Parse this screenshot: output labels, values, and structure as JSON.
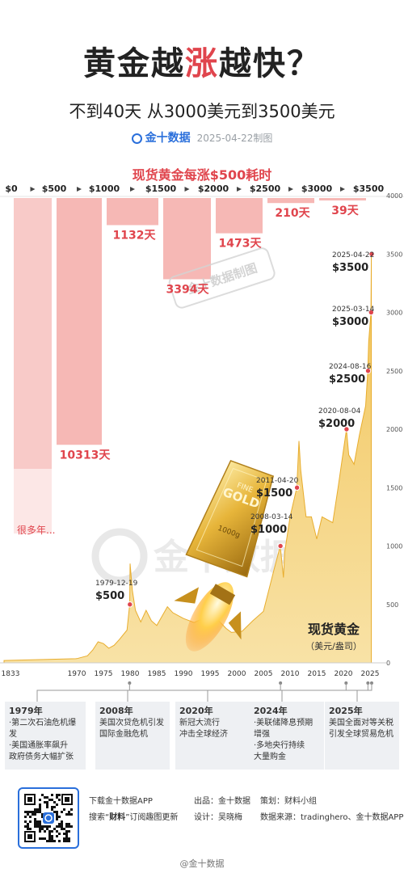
{
  "header": {
    "title_pre": "黄金越",
    "title_accent": "涨",
    "title_post": "越快？",
    "subtitle": "不到40天 从3000美元到3500美元",
    "brand": "金十数据",
    "date_note": "2025-04-22制图"
  },
  "section_title": "现货黄金每涨$500耗时",
  "watermarks": {
    "big": "金十数据",
    "stamp": "金十数据制图"
  },
  "colors": {
    "accent": "#e0454d",
    "bar": "#f6b8b5",
    "area": "#f3c96a",
    "brand": "#2a6fdb"
  },
  "chart_data": [
    {
      "type": "bar",
      "title": "现货黄金每涨$500耗时",
      "categories": [
        "$0",
        "$500",
        "$1000",
        "$1500",
        "$2000",
        "$2500",
        "$3000",
        "$3500"
      ],
      "values_days": [
        null,
        10313,
        1132,
        3394,
        1473,
        210,
        39
      ],
      "labels": [
        "很多年...",
        "10313天",
        "1132天",
        "3394天",
        "1473天",
        "210天",
        "39天"
      ]
    },
    {
      "type": "area",
      "series_label": "现货黄金",
      "unit": "（美元/盎司）",
      "x_ticks": [
        "1833",
        "1970",
        "1975",
        "1980",
        "1985",
        "1990",
        "1995",
        "2000",
        "2005",
        "2010",
        "2015",
        "2020",
        "2025"
      ],
      "y_ticks": [
        "0",
        "500",
        "1000",
        "1500",
        "2000",
        "2500",
        "3000",
        "3500",
        "4000"
      ],
      "ylim": [
        0,
        4000
      ],
      "points": [
        [
          "1833",
          20
        ],
        [
          "1968",
          35
        ],
        [
          "1970",
          36
        ],
        [
          "1972",
          60
        ],
        [
          "1973",
          110
        ],
        [
          "1974",
          180
        ],
        [
          "1975",
          165
        ],
        [
          "1976",
          125
        ],
        [
          "1977",
          150
        ],
        [
          "1978",
          200
        ],
        [
          "1979-06",
          280
        ],
        [
          "1979-12",
          500
        ],
        [
          "1980-01",
          850
        ],
        [
          "1980-06",
          620
        ],
        [
          "1981",
          450
        ],
        [
          "1982",
          350
        ],
        [
          "1983",
          450
        ],
        [
          "1984",
          360
        ],
        [
          "1985",
          320
        ],
        [
          "1987",
          480
        ],
        [
          "1988",
          430
        ],
        [
          "1990",
          380
        ],
        [
          "1992",
          345
        ],
        [
          "1994",
          385
        ],
        [
          "1996",
          390
        ],
        [
          "1998",
          295
        ],
        [
          "1999",
          260
        ],
        [
          "2001",
          270
        ],
        [
          "2003",
          360
        ],
        [
          "2005",
          440
        ],
        [
          "2006",
          620
        ],
        [
          "2007",
          800
        ],
        [
          "2008-03",
          1000
        ],
        [
          "2008-10",
          730
        ],
        [
          "2009",
          950
        ],
        [
          "2010",
          1250
        ],
        [
          "2011-04",
          1500
        ],
        [
          "2011-09",
          1900
        ],
        [
          "2012",
          1650
        ],
        [
          "2013",
          1250
        ],
        [
          "2014",
          1250
        ],
        [
          "2015",
          1060
        ],
        [
          "2016",
          1250
        ],
        [
          "2018",
          1200
        ],
        [
          "2019",
          1500
        ],
        [
          "2020-08",
          2000
        ],
        [
          "2021",
          1780
        ],
        [
          "2022",
          1700
        ],
        [
          "2023",
          1950
        ],
        [
          "2024-03",
          2200
        ],
        [
          "2024-08",
          2500
        ],
        [
          "2024-10",
          2750
        ],
        [
          "2025-03",
          3000
        ],
        [
          "2025-04",
          3500
        ]
      ],
      "annotations": [
        {
          "date": "1979-12-19",
          "price": "$500",
          "value": 500
        },
        {
          "date": "2008-03-14",
          "price": "$1000",
          "value": 1000
        },
        {
          "date": "2011-04-20",
          "price": "$1500",
          "value": 1500
        },
        {
          "date": "2020-08-04",
          "price": "$2000",
          "value": 2000
        },
        {
          "date": "2024-08-16",
          "price": "$2500",
          "value": 2500
        },
        {
          "date": "2025-03-14",
          "price": "$3000",
          "value": 3000
        },
        {
          "date": "2025-04-22",
          "price": "$3500",
          "value": 3500
        }
      ]
    }
  ],
  "gold_bar": {
    "line1": "FINE",
    "line2": "GOLD",
    "weight": "1000g"
  },
  "events": [
    {
      "year": "1979年",
      "lines": [
        "·第二次石油危机爆发",
        "·美国通胀率飙升",
        "政府债务大幅扩张"
      ]
    },
    {
      "year": "2008年",
      "lines": [
        "美国次贷危机引发",
        "国际金融危机"
      ]
    },
    {
      "year": "2020年",
      "lines": [
        "新冠大流行",
        "冲击全球经济"
      ]
    },
    {
      "year": "2024年",
      "lines": [
        "·美联储降息预期",
        "增强",
        "·多地央行持续",
        "大量购金"
      ]
    },
    {
      "year": "2025年",
      "lines": [
        "美国全面对等关税",
        "引发全球贸易危机"
      ]
    }
  ],
  "footer": {
    "download": "下载金十数据APP",
    "search_pre": "搜索“",
    "search_bold": "财料",
    "search_post": "”订阅趣图更新",
    "producer": "出品：金十数据",
    "planner": "策划：财料小组",
    "design": "设计：吴晓梅",
    "source": "数据来源：tradinghero、金十数据APP",
    "weibo": "@金十数据"
  }
}
